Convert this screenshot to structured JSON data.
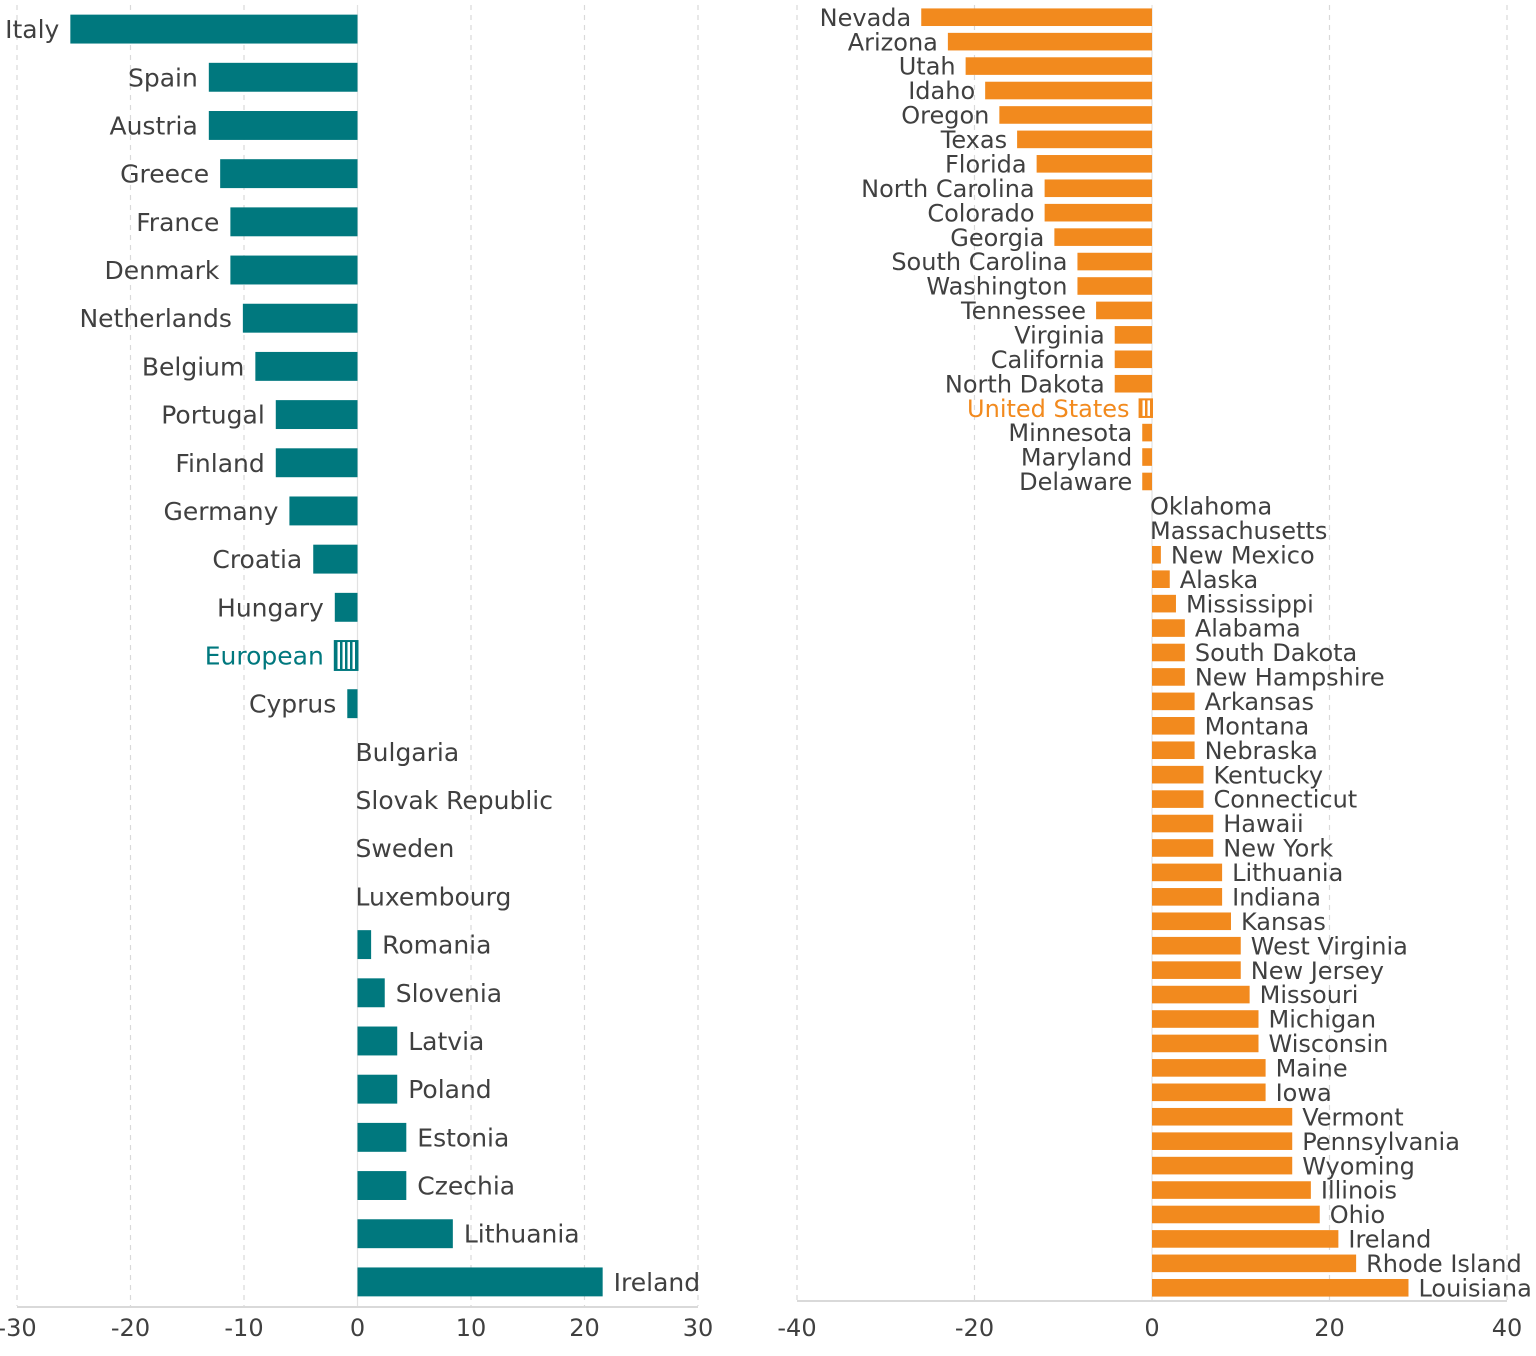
{
  "chart_data": [
    {
      "type": "bar",
      "orientation": "horizontal",
      "title": "",
      "xlabel": "",
      "ylabel": "",
      "xlim": [
        -30,
        30
      ],
      "xticks": [
        "-30",
        "-20",
        "-10",
        "0",
        "10",
        "20",
        "30"
      ],
      "grid": true,
      "legend": "none",
      "bar_color": "#00787E",
      "highlight_color": "#00787E",
      "highlight_category": "European",
      "highlight_pattern": "vertical-stripes",
      "categories": [
        "Italy",
        "Spain",
        "Austria",
        "Greece",
        "France",
        "Denmark",
        "Netherlands",
        "Belgium",
        "Portugal",
        "Finland",
        "Germany",
        "Croatia",
        "Hungary",
        "European",
        "Cyprus",
        "Bulgaria",
        "Slovak Republic",
        "Sweden",
        "Luxembourg",
        "Romania",
        "Slovenia",
        "Latvia",
        "Poland",
        "Estonia",
        "Czechia",
        "Lithuania",
        "Ireland"
      ],
      "values": [
        -25.3,
        -13.1,
        -13.1,
        -12.1,
        -11.2,
        -11.2,
        -10.1,
        -9.0,
        -7.2,
        -7.2,
        -6.0,
        -3.9,
        -2.0,
        -2.0,
        -0.9,
        0,
        0,
        0,
        0,
        1.2,
        2.4,
        3.5,
        3.5,
        4.3,
        4.3,
        8.4,
        21.6
      ]
    },
    {
      "type": "bar",
      "orientation": "horizontal",
      "title": "",
      "xlabel": "",
      "ylabel": "",
      "xlim": [
        -40,
        40
      ],
      "xticks": [
        "-40",
        "-20",
        "0",
        "20",
        "40"
      ],
      "grid": true,
      "legend": "none",
      "bar_color": "#F28A1E",
      "highlight_color": "#F28A1E",
      "highlight_category": "United States",
      "highlight_pattern": "vertical-stripes",
      "categories": [
        "Nevada",
        "Arizona",
        "Utah",
        "Idaho",
        "Oregon",
        "Texas",
        "Florida",
        "North Carolina",
        "Colorado",
        "Georgia",
        "South Carolina",
        "Washington",
        "Tennessee",
        "Virginia",
        "California",
        "North Dakota",
        "United States",
        "Minnesota",
        "Maryland",
        "Delaware",
        "Oklahoma",
        "Massachusetts",
        "New Mexico",
        "Alaska",
        "Mississippi",
        "Alabama",
        "South Dakota",
        "New Hampshire",
        "Arkansas",
        "Montana",
        "Nebraska",
        "Kentucky",
        "Connecticut",
        "Hawaii",
        "New York",
        "Lithuania",
        "Indiana",
        "Kansas",
        "West Virginia",
        "New Jersey",
        "Missouri",
        "Michigan",
        "Wisconsin",
        "Maine",
        "Iowa",
        "Vermont",
        "Pennsylvania",
        "Wyoming",
        "Illinois",
        "Ohio",
        "Ireland",
        "Rhode Island",
        "Louisiana"
      ],
      "values": [
        -26.0,
        -23.0,
        -21.0,
        -18.8,
        -17.2,
        -15.2,
        -13.0,
        -12.1,
        -12.1,
        -11.0,
        -8.4,
        -8.4,
        -6.3,
        -4.2,
        -4.2,
        -4.2,
        -1.4,
        -1.1,
        -1.1,
        -1.1,
        0,
        0,
        1.0,
        2.0,
        2.7,
        3.7,
        3.7,
        3.7,
        4.8,
        4.8,
        4.8,
        5.8,
        5.8,
        6.9,
        6.9,
        7.9,
        7.9,
        8.9,
        10.0,
        10.0,
        11.0,
        12.0,
        12.0,
        12.8,
        12.8,
        15.8,
        15.8,
        15.8,
        17.9,
        18.9,
        21.0,
        23.0,
        28.9
      ]
    }
  ]
}
